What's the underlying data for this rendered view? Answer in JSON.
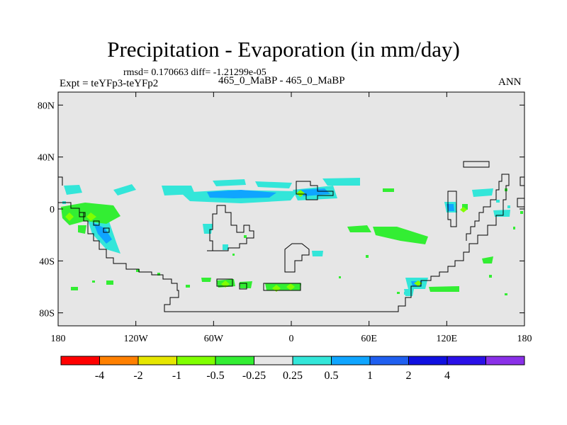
{
  "title": "Precipitation - Evaporation (in mm/day)",
  "stats": "rmsd= 0.170663 diff= -1.21299e-05",
  "experiment": "Expt = teYFp3-teYFp2",
  "cases": "465_0_MaBP - 465_0_MaBP",
  "season": "ANN",
  "map": {
    "background": "#e6e6e6",
    "lon_range": [
      -180,
      180
    ],
    "lat_range": [
      -90,
      90
    ],
    "lat_ticks": [
      {
        "value": 80,
        "label": "80N"
      },
      {
        "value": 40,
        "label": "40N"
      },
      {
        "value": 0,
        "label": "0"
      },
      {
        "value": -40,
        "label": "40S"
      },
      {
        "value": -80,
        "label": "80S"
      }
    ],
    "lon_ticks": [
      {
        "value": -180,
        "label": "180"
      },
      {
        "value": -120,
        "label": "120W"
      },
      {
        "value": -60,
        "label": "60W"
      },
      {
        "value": 0,
        "label": "0"
      },
      {
        "value": 60,
        "label": "60E"
      },
      {
        "value": 120,
        "label": "120E"
      },
      {
        "value": 180,
        "label": "180"
      }
    ]
  },
  "colorbar": {
    "colors": [
      "#ff0000",
      "#ff8000",
      "#e6e600",
      "#80ff00",
      "#33ee33",
      "#e6e6e6",
      "#33e6d9",
      "#0fa5ff",
      "#1f5ff0",
      "#1010e0",
      "#2a10e8",
      "#8a30e8"
    ],
    "labels": [
      "-4",
      "-2",
      "-1",
      "-0.5",
      "-0.25",
      "0.25",
      "0.5",
      "1",
      "2",
      "4"
    ]
  }
}
